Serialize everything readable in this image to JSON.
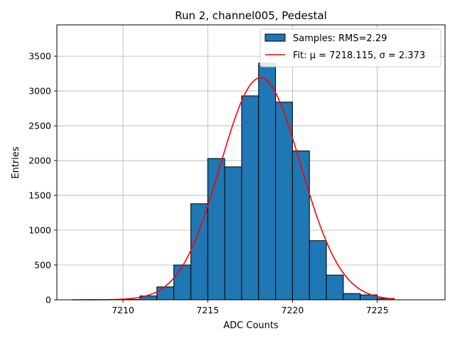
{
  "chart_data": {
    "type": "bar",
    "title": "Run 2, channel005, Pedestal",
    "xlabel": "ADC Counts",
    "ylabel": "Entries",
    "xlim": [
      7206.1,
      7229
    ],
    "ylim": [
      0,
      3950
    ],
    "grid": true,
    "legend_position": "top-right",
    "x_ticks": [
      7210,
      7215,
      7220,
      7225
    ],
    "y_ticks": [
      0,
      500,
      1000,
      1500,
      2000,
      2500,
      3000,
      3500
    ],
    "bin_width": 1,
    "series": [
      {
        "name": "Samples: RMS=2.29",
        "type": "histogram",
        "color": "#1f77b4",
        "edge_color": "#000000",
        "bins": [
          {
            "x0": 7210,
            "value": 5
          },
          {
            "x0": 7211,
            "value": 55
          },
          {
            "x0": 7212,
            "value": 185
          },
          {
            "x0": 7213,
            "value": 500
          },
          {
            "x0": 7214,
            "value": 1380
          },
          {
            "x0": 7215,
            "value": 2030
          },
          {
            "x0": 7216,
            "value": 1910
          },
          {
            "x0": 7217,
            "value": 2930
          },
          {
            "x0": 7218,
            "value": 3400
          },
          {
            "x0": 7219,
            "value": 2840
          },
          {
            "x0": 7220,
            "value": 2140
          },
          {
            "x0": 7221,
            "value": 850
          },
          {
            "x0": 7222,
            "value": 355
          },
          {
            "x0": 7223,
            "value": 90
          },
          {
            "x0": 7224,
            "value": 70
          },
          {
            "x0": 7225,
            "value": 20
          }
        ]
      },
      {
        "name": "Fit: μ = 7218.115, σ = 2.373",
        "type": "gaussian_fit",
        "color": "#ff0000",
        "mu": 7218.115,
        "sigma": 2.373,
        "amplitude": 3190,
        "x_range": [
          7207,
          7226
        ]
      }
    ]
  }
}
